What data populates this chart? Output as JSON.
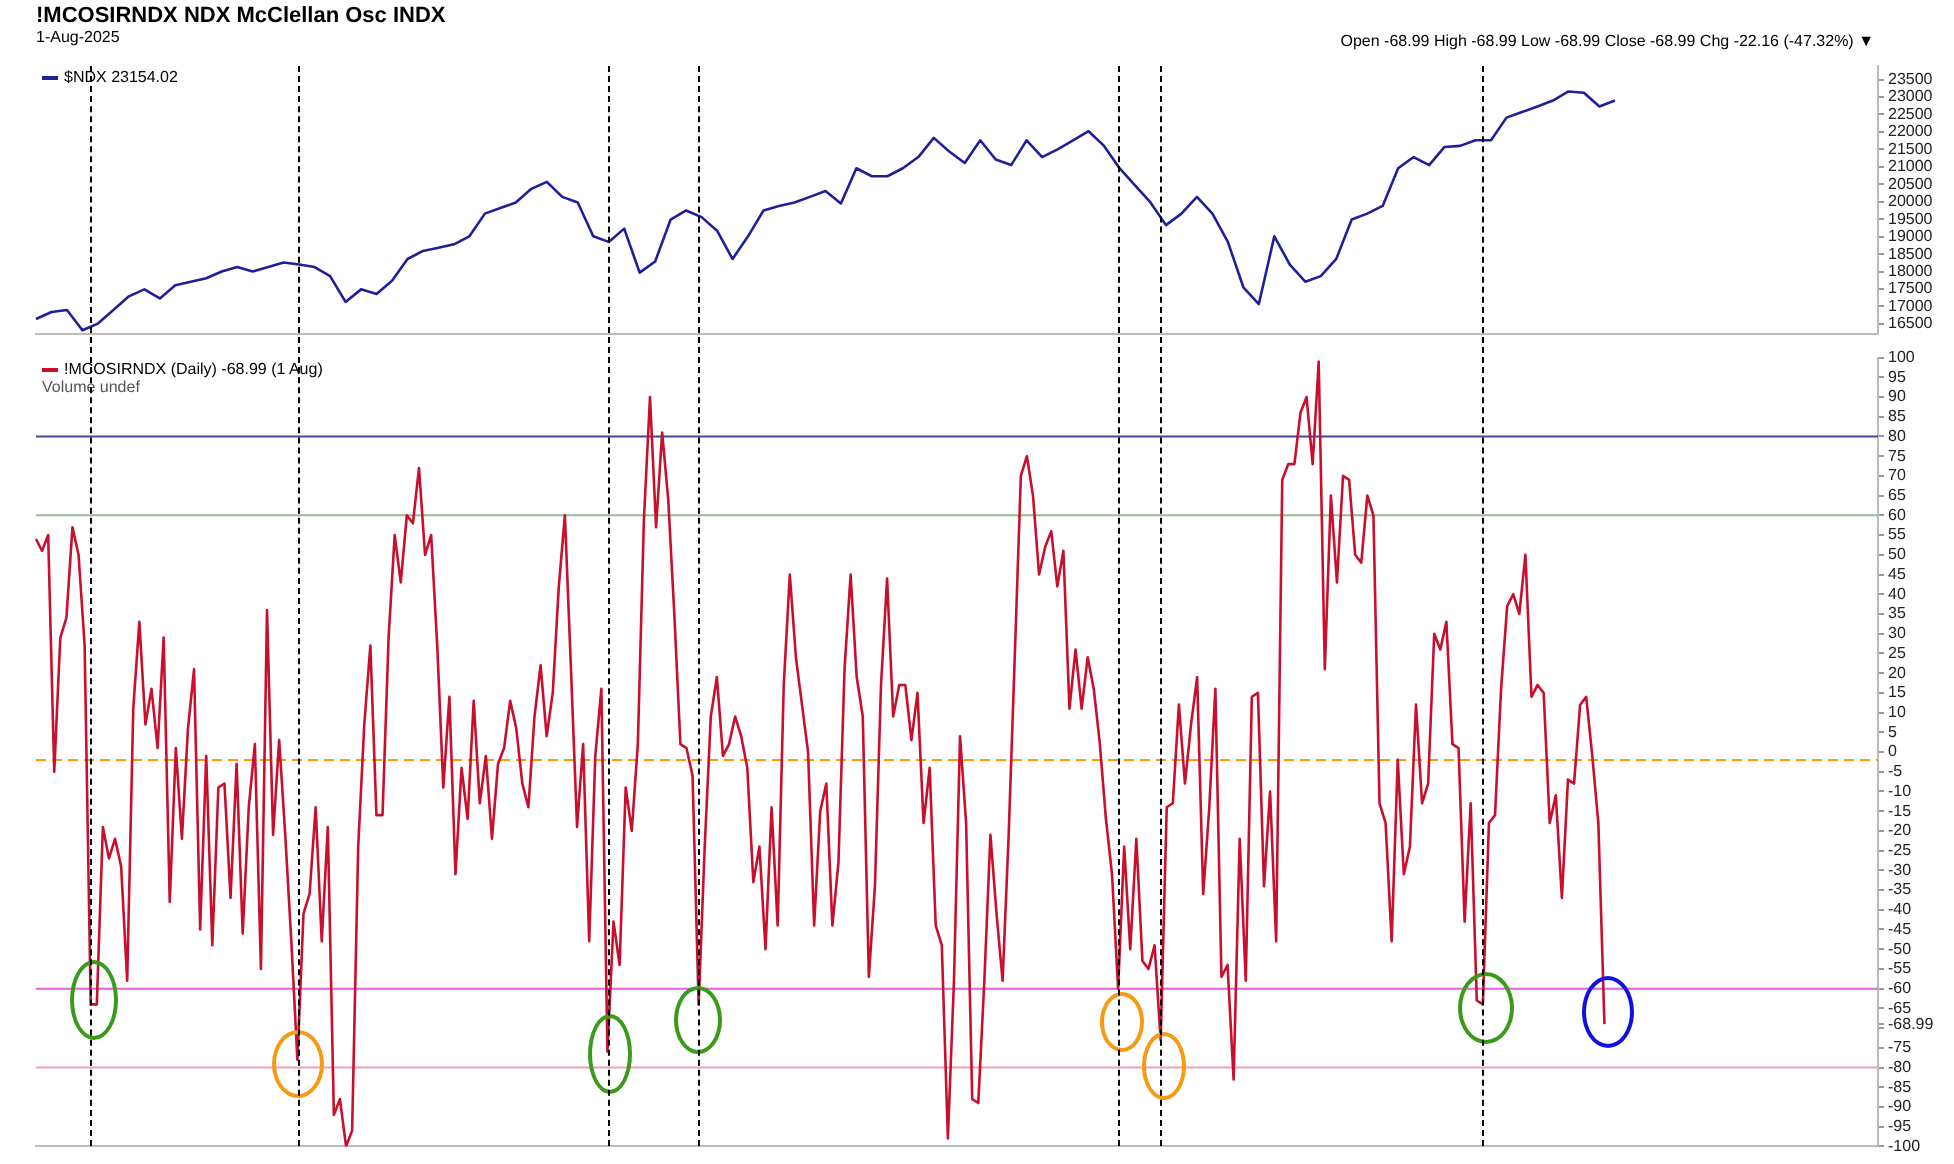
{
  "chart_data": [
    {
      "type": "line",
      "title": "!MCOSIRNDX NDX McClellan Osc INDX",
      "subtitle": "1-Aug-2025",
      "annotations": [
        "Open -68.99 High -68.99 Low -68.99 Close -68.99 Chg -22.16 (-47.32%) ▼"
      ],
      "categories": [
        null,
        null,
        null,
        null,
        null,
        null,
        null,
        null,
        null,
        null,
        null,
        null,
        null,
        null,
        null,
        null,
        null,
        null,
        null,
        null,
        null,
        null,
        null,
        null,
        null,
        null,
        null,
        null,
        null,
        null,
        null,
        null,
        null,
        null,
        null,
        null,
        null,
        null,
        null,
        null,
        null,
        null,
        null,
        null,
        null,
        null,
        null,
        null,
        null,
        null,
        null,
        null,
        null,
        null,
        null,
        null,
        null,
        null,
        null,
        null,
        null,
        null,
        null,
        null,
        null,
        null,
        null,
        null,
        null,
        null,
        null,
        null,
        null,
        null,
        null,
        null,
        null,
        null,
        null,
        null,
        null,
        null,
        null,
        null,
        null,
        null,
        null,
        null,
        null,
        null,
        null,
        null,
        null,
        null,
        null,
        null,
        null,
        null,
        null,
        null,
        null,
        null,
        null,
        null,
        null,
        null,
        null,
        null,
        null,
        null,
        null,
        null,
        null,
        null,
        null,
        null,
        null,
        null,
        null,
        null
      ],
      "series": [
        {
          "name": "$NDX 23154.02",
          "color": "#1f1f9a",
          "values": [
            16640,
            16840,
            16900,
            16320,
            16510,
            16900,
            17290,
            17490,
            17230,
            17610,
            17710,
            17810,
            18000,
            18130,
            18000,
            18130,
            18260,
            18200,
            18130,
            17870,
            17130,
            17490,
            17360,
            17740,
            18360,
            18590,
            18680,
            18780,
            19010,
            19660,
            19820,
            19980,
            20370,
            20570,
            20140,
            19980,
            19010,
            18850,
            19230,
            17970,
            18290,
            19490,
            19750,
            19560,
            19170,
            18360,
            19010,
            19750,
            19880,
            19980,
            20140,
            20310,
            19950,
            20960,
            20730,
            20730,
            20960,
            21280,
            21830,
            21440,
            21110,
            21760,
            21210,
            21050,
            21760,
            21280,
            21500,
            21760,
            22020,
            21600,
            20960,
            20470,
            19980,
            19330,
            19660,
            20140,
            19660,
            18850,
            17550,
            17070,
            19010,
            18200,
            17710,
            17870,
            18360,
            19490,
            19660,
            19880,
            20960,
            21280,
            21050,
            21570,
            21600,
            21760,
            21760,
            22410,
            22570,
            22730,
            22900,
            23160,
            23120,
            22730,
            22900,
            null,
            null,
            null,
            null,
            null,
            null,
            null,
            null,
            null,
            null,
            null,
            null,
            null,
            null,
            null,
            null,
            null
          ]
        }
      ],
      "ylim": [
        16200,
        23900
      ],
      "yticks": [
        16500,
        17000,
        17500,
        18000,
        18500,
        19000,
        19500,
        20000,
        20500,
        21000,
        21500,
        22000,
        22500,
        23000,
        23500
      ],
      "tick_labels": "y",
      "legend": "top left"
    },
    {
      "type": "line",
      "annotations": [
        "Volume undef"
      ],
      "categories": [
        null,
        null,
        null,
        null,
        null,
        null,
        null,
        null,
        null,
        null,
        null,
        null,
        null,
        null,
        null,
        null,
        null,
        null,
        null,
        null,
        null,
        null,
        null,
        null,
        null,
        null,
        null,
        null,
        null,
        null,
        null,
        null,
        null,
        null,
        null,
        null,
        null,
        null,
        null,
        null,
        null,
        null,
        null,
        null,
        null,
        null,
        null,
        null,
        null,
        null,
        null,
        null,
        null,
        null,
        null,
        null,
        null,
        null,
        null,
        null,
        null,
        null,
        null,
        null,
        null,
        null,
        null,
        null,
        null,
        null,
        null,
        null,
        null,
        null,
        null,
        null,
        null,
        null,
        null,
        null,
        null,
        null,
        null,
        null,
        null,
        null,
        null,
        null,
        null,
        null,
        null,
        null,
        null,
        null,
        null,
        null,
        null,
        null,
        null,
        null,
        null,
        null,
        null,
        null,
        null,
        null,
        null,
        null,
        null,
        null,
        null,
        null,
        null,
        null,
        null,
        null,
        null,
        null,
        null,
        null,
        null,
        null,
        null,
        null,
        null,
        null,
        null,
        null,
        null,
        null,
        null,
        null,
        null,
        null,
        null,
        null,
        null,
        null,
        null,
        null,
        null,
        null,
        null,
        null,
        null,
        null,
        null,
        null,
        null,
        null,
        null,
        null,
        null,
        null,
        null,
        null,
        null,
        null,
        null,
        null,
        null,
        null,
        null,
        null,
        null,
        null,
        null,
        null,
        null,
        null,
        null,
        null,
        null,
        null,
        null,
        null,
        null,
        null,
        null,
        null,
        null,
        null,
        null,
        null,
        null,
        null,
        null,
        null,
        null,
        null,
        null,
        null,
        null,
        null,
        null,
        null,
        null,
        null,
        null,
        null,
        null,
        null,
        null,
        null,
        null,
        null,
        null,
        null,
        null,
        null,
        null,
        null,
        null,
        null,
        null,
        null,
        null,
        null,
        null,
        null,
        null,
        null,
        null,
        null,
        null,
        null,
        null,
        null,
        null,
        null,
        null,
        null,
        null,
        null,
        null,
        null,
        null,
        null,
        null,
        null,
        null,
        null,
        null,
        null,
        null,
        null,
        null,
        null,
        null,
        null,
        null,
        null,
        null,
        null,
        null,
        null,
        null,
        null,
        null,
        null,
        null,
        null,
        null,
        null,
        null,
        null,
        null,
        null,
        null,
        null,
        null,
        null,
        null,
        null,
        null,
        null,
        null,
        null,
        null,
        null,
        null,
        null,
        null,
        null,
        null,
        null,
        null,
        null,
        null,
        null,
        null,
        null,
        null,
        null,
        null,
        null,
        null,
        null,
        null,
        null,
        null,
        null,
        null,
        null
      ],
      "series": [
        {
          "name": "!MCOSIRNDX (Daily) -68.99 (1 Aug)",
          "color": "#c8102e",
          "values": [
            54,
            51,
            55,
            -5,
            29,
            34,
            57,
            50,
            27,
            -64,
            -64,
            -19,
            -27,
            -22,
            -29,
            -58,
            11,
            33,
            7,
            16,
            1,
            29,
            -38,
            1,
            -22,
            6,
            21,
            -45,
            -1,
            -49,
            -9,
            -8,
            -37,
            -3,
            -46,
            -14,
            2,
            -55,
            36,
            -21,
            3,
            -21,
            -48,
            -78,
            -41,
            -36,
            -14,
            -48,
            -19,
            -92,
            -88,
            -100,
            -96,
            -24,
            7,
            27,
            -16,
            -16,
            29,
            55,
            43,
            60,
            58,
            72,
            50,
            55,
            27,
            -9,
            14,
            -31,
            -4,
            -17,
            13,
            -13,
            -1,
            -22,
            -3,
            1,
            13,
            6,
            -8,
            -14,
            9,
            22,
            4,
            15,
            42,
            60,
            21,
            -19,
            2,
            -48,
            -1,
            16,
            -76,
            -43,
            -54,
            -9,
            -20,
            2,
            59,
            90,
            57,
            81,
            64,
            35,
            2,
            1,
            -6,
            -64,
            -24,
            9,
            19,
            -1,
            2,
            9,
            4,
            -4,
            -33,
            -24,
            -50,
            -14,
            -44,
            17,
            45,
            24,
            12,
            0,
            -44,
            -15,
            -8,
            -44,
            -28,
            21,
            45,
            19,
            9,
            -57,
            -34,
            17,
            44,
            9,
            17,
            17,
            3,
            15,
            -18,
            -4,
            -44,
            -49,
            -98,
            -58,
            4,
            -18,
            -88,
            -89,
            -58,
            -21,
            -41,
            -58,
            -21,
            24,
            70,
            75,
            65,
            45,
            52,
            56,
            42,
            51,
            11,
            26,
            11,
            24,
            16,
            2,
            -17,
            -31,
            -60,
            -24,
            -50,
            -22,
            -53,
            -55,
            -49,
            -73,
            -14,
            -13,
            12,
            -8,
            7,
            19,
            -36,
            -14,
            16,
            -57,
            -54,
            -83,
            -22,
            -58,
            14,
            15,
            -34,
            -10,
            -48,
            69,
            73,
            73,
            86,
            90,
            73,
            99,
            21,
            65,
            43,
            70,
            69,
            50,
            48,
            65,
            60,
            -13,
            -18,
            -48,
            -2,
            -31,
            -24,
            12,
            -13,
            -8,
            30,
            26,
            33,
            2,
            1,
            -43,
            -13,
            -63,
            -64,
            -18,
            -16,
            16,
            37,
            40,
            35,
            50,
            14,
            17,
            15,
            -18,
            -11,
            -37,
            -7,
            -8,
            12,
            14,
            -1,
            -18,
            -68.99,
            null,
            null,
            null,
            null,
            null,
            null,
            null,
            null,
            null,
            null,
            null,
            null,
            null,
            null,
            null,
            null,
            null,
            null,
            null,
            null,
            null,
            null,
            null,
            null,
            null,
            null,
            null,
            null,
            null,
            null,
            null,
            null,
            null,
            null,
            null,
            null,
            null,
            null,
            null,
            null,
            null,
            null,
            null,
            null,
            null
          ]
        }
      ],
      "ylim": [
        -100,
        100
      ],
      "yticks": [
        -100,
        -95,
        -90,
        -85,
        -80,
        -75,
        {
          "value": -70,
          "label": null
        },
        {
          "value": -68.99,
          "label": "-68.99"
        },
        -65,
        -60,
        -55,
        -50,
        -45,
        -40,
        -35,
        -30,
        -25,
        -20,
        -15,
        -10,
        -5,
        0,
        5,
        10,
        15,
        20,
        25,
        30,
        35,
        40,
        45,
        50,
        55,
        60,
        65,
        70,
        75,
        80,
        85,
        90,
        95,
        100
      ],
      "tick_labels": "y",
      "legend": "top left",
      "ref_lines": [
        {
          "axis": "y",
          "value": 80,
          "color": "#3b4a9a",
          "line_style": "solid"
        },
        {
          "axis": "y",
          "value": 60,
          "color": "#8fbf8f",
          "line_style": "solid"
        },
        {
          "axis": "y",
          "value": -2,
          "color": "#ff9900",
          "line_style": "dashed"
        },
        {
          "axis": "y",
          "value": -60,
          "color": "#e060e0",
          "line_style": "solid"
        },
        {
          "axis": "y",
          "value": -80,
          "color": "#f0a0b0",
          "line_style": "solid"
        }
      ]
    }
  ]
}
